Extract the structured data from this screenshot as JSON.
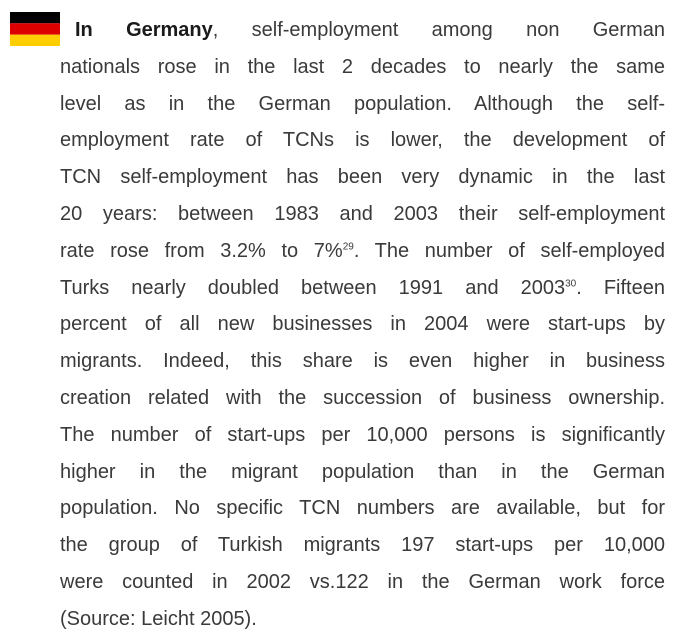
{
  "paragraph": {
    "lines": [
      [
        {
          "text": "In Germany",
          "bold": true
        },
        {
          "text": ", self-employment among non German"
        }
      ],
      [
        {
          "text": "nationals rose in the last 2 decades to nearly the same"
        }
      ],
      [
        {
          "text": "level as in the German population. Although the self-"
        }
      ],
      [
        {
          "text": "employment rate of TCNs is lower, the development of"
        }
      ],
      [
        {
          "text": "TCN self-employment has been very dynamic in the last"
        }
      ],
      [
        {
          "text": "20 years: between 1983 and 2003 their self-employment"
        }
      ],
      [
        {
          "text": "rate rose from 3.2% to 7%"
        },
        {
          "text": "29",
          "sup": true
        },
        {
          "text": ". The number of self-employed"
        }
      ],
      [
        {
          "text": "Turks nearly doubled between 1991 and 2003"
        },
        {
          "text": "30",
          "sup": true
        },
        {
          "text": ". Fifteen"
        }
      ],
      [
        {
          "text": "percent of all new businesses in 2004 were start-ups by"
        }
      ],
      [
        {
          "text": "migrants. Indeed, this share is even higher in business"
        }
      ],
      [
        {
          "text": "creation related with the succession of business ownership."
        }
      ],
      [
        {
          "text": "The number of start-ups per 10,000 persons is significantly"
        }
      ],
      [
        {
          "text": "higher in the migrant population than in the German"
        }
      ],
      [
        {
          "text": "population. No specific TCN numbers are available, but for"
        }
      ],
      [
        {
          "text": "the group of Turkish migrants 197 start-ups per 10,000"
        }
      ],
      [
        {
          "text": "were counted in 2002 vs.122 in the German work force"
        }
      ],
      [
        {
          "text": "(Source: Leicht 2005)."
        }
      ]
    ]
  }
}
